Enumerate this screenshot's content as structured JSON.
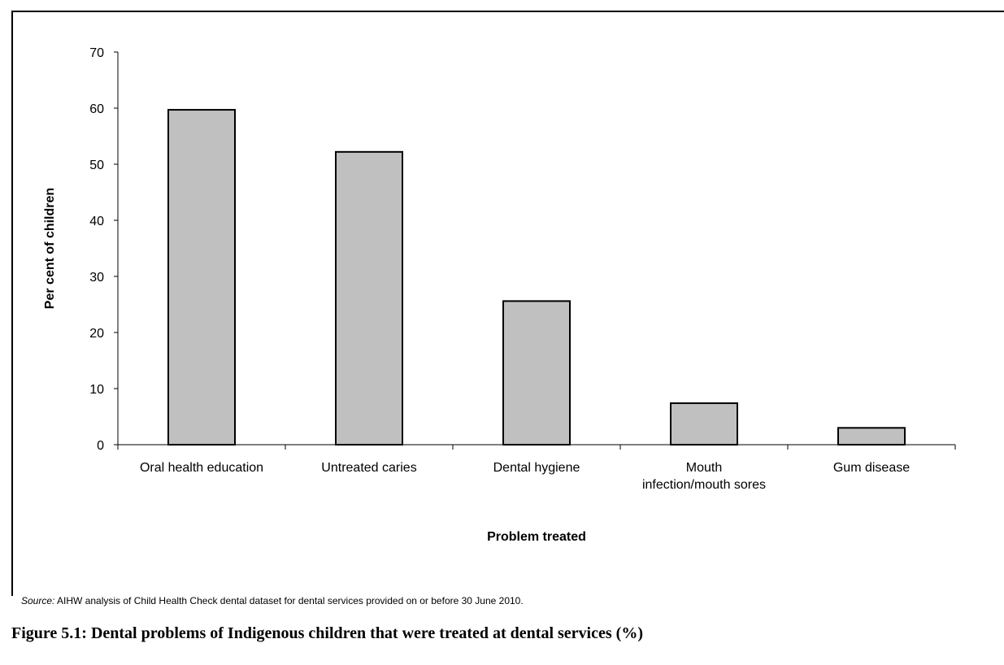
{
  "chart_data": {
    "type": "bar",
    "title": "",
    "xlabel": "Problem treated",
    "ylabel": "Per cent of children",
    "ylim": [
      0,
      70
    ],
    "yticks": [
      0,
      10,
      20,
      30,
      40,
      50,
      60,
      70
    ],
    "grid": false,
    "categories": [
      [
        "Oral health education"
      ],
      [
        "Untreated caries"
      ],
      [
        "Dental hygiene"
      ],
      [
        "Mouth",
        "infection/mouth sores"
      ],
      [
        "Gum disease"
      ]
    ],
    "values": [
      59.7,
      52.2,
      25.6,
      7.4,
      3.0
    ],
    "bar_color": "#c0c0c0",
    "bar_outline": "#000000"
  },
  "source": {
    "label": "Source:",
    "text": " AIHW analysis of Child Health Check dental dataset for dental services provided on or before 30 June 2010."
  },
  "caption": "Figure 5.1: Dental problems of Indigenous children that were treated at dental services (%)"
}
